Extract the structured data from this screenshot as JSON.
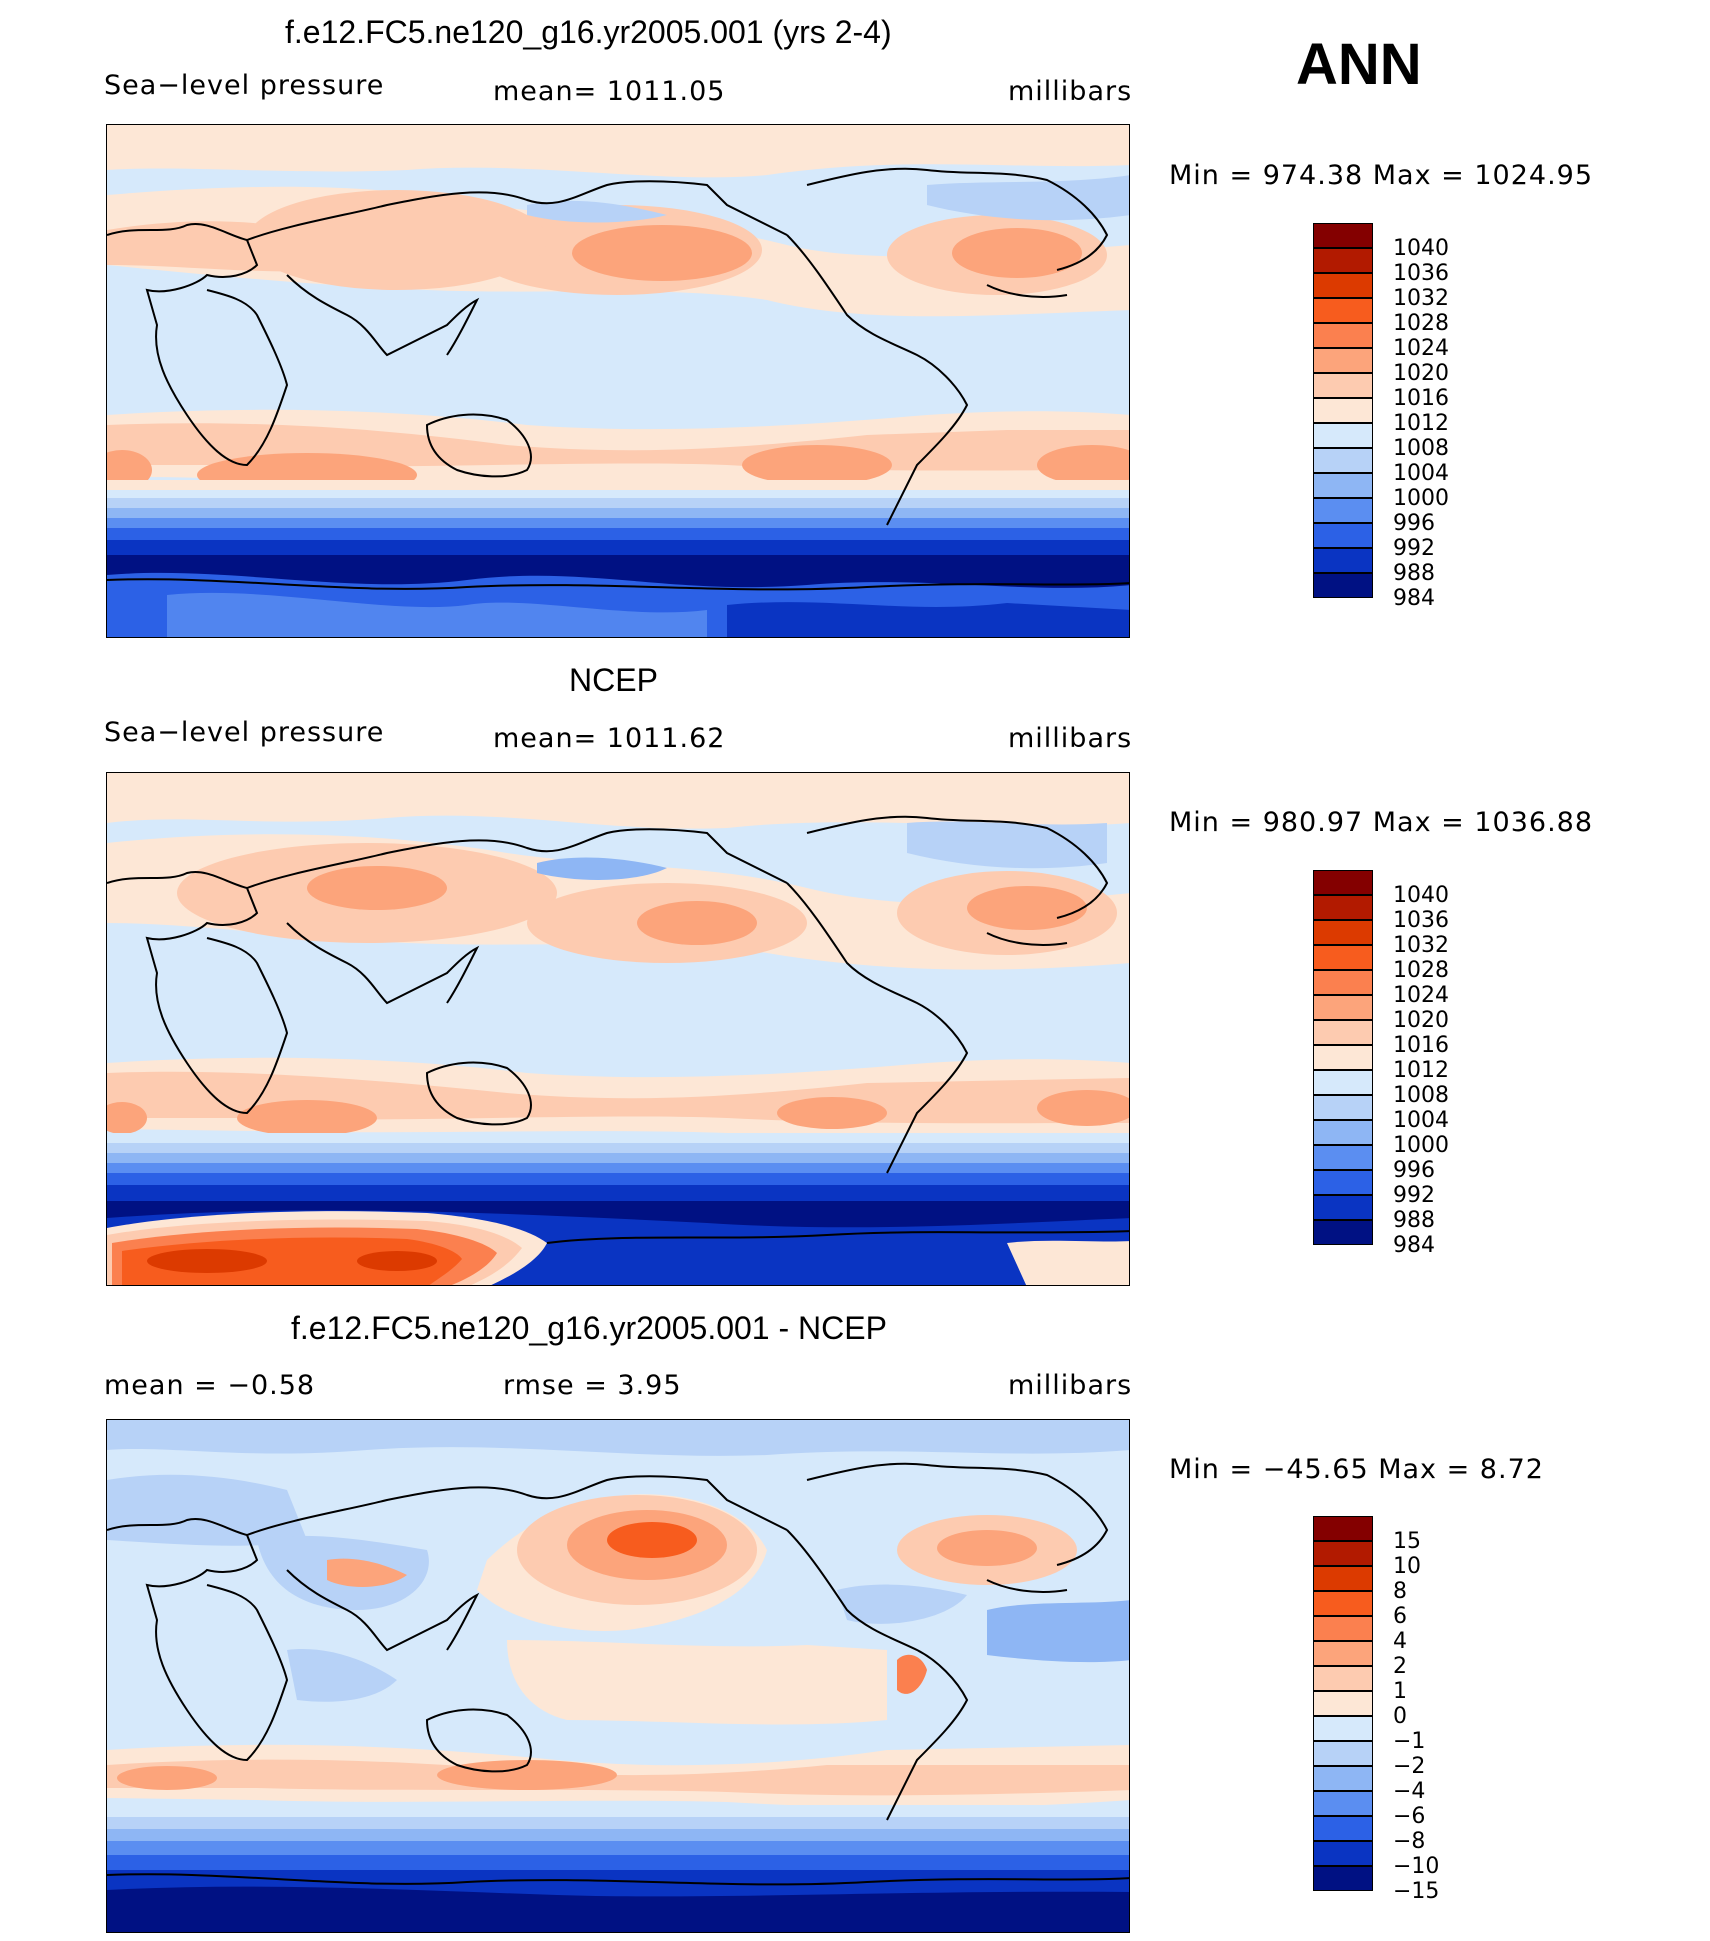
{
  "season": "ANN",
  "levels_abs": [
    "1040",
    "1036",
    "1032",
    "1028",
    "1024",
    "1020",
    "1016",
    "1012",
    "1008",
    "1004",
    "1000",
    "996",
    "992",
    "988",
    "984"
  ],
  "levels_diff": [
    "15",
    "10",
    "8",
    "6",
    "4",
    "2",
    "1",
    "0",
    "−1",
    "−2",
    "−4",
    "−6",
    "−8",
    "−10",
    "−15"
  ],
  "colors_abs": [
    "#840000",
    "#b21a00",
    "#dc3a00",
    "#f75c1e",
    "#fb804f",
    "#fca47b",
    "#fdcbb0",
    "#fde7d6",
    "#d6e9fb",
    "#b7d2f7",
    "#8eb6f4",
    "#5b8ef1",
    "#2c61e6",
    "#0a34c2",
    "#001183"
  ],
  "colors_diff": [
    "#840000",
    "#b21a00",
    "#dc3a00",
    "#f75c1e",
    "#fb804f",
    "#fca47b",
    "#fdcbb0",
    "#fde7d6",
    "#d6e9fb",
    "#b7d2f7",
    "#8eb6f4",
    "#5b8ef1",
    "#2c61e6",
    "#0a34c2",
    "#001183"
  ],
  "panels": [
    {
      "title": "f.e12.FC5.ne120_g16.yr2005.001 (yrs 2-4)",
      "left_label": "Sea−level pressure",
      "center_label": "mean=  1011.05",
      "right_label": "millibars",
      "minmax": "Min  =  974.38  Max  =  1024.95",
      "map_name": "model-slp-map"
    },
    {
      "title": "NCEP",
      "left_label": "Sea−level pressure",
      "center_label": "mean=  1011.62",
      "right_label": "millibars",
      "minmax": "Min  =  980.97  Max  =  1036.88",
      "map_name": "ncep-slp-map"
    },
    {
      "title": "f.e12.FC5.ne120_g16.yr2005.001 - NCEP",
      "left_label": "mean  =    −0.58",
      "center_label": "rmse  =     3.95",
      "right_label": "millibars",
      "minmax": "Min  =  −45.65  Max  =      8.72",
      "map_name": "difference-slp-map"
    }
  ]
}
